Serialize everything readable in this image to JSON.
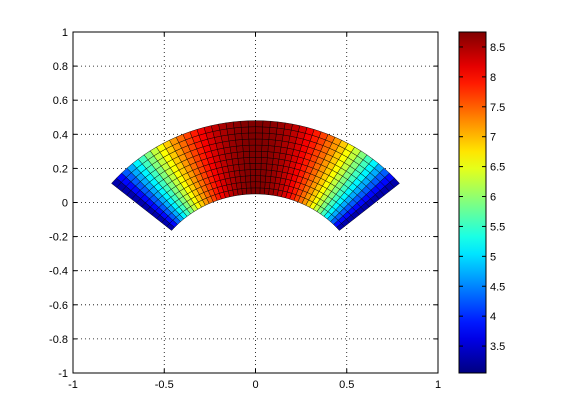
{
  "chart_data": {
    "type": "heatmap",
    "title": "",
    "xlabel": "",
    "ylabel": "",
    "xlim": [
      -1,
      1
    ],
    "ylim": [
      -1,
      1
    ],
    "grid": true,
    "grid_style": "dotted",
    "colormap": "jet",
    "xticks": [
      -1,
      -0.5,
      0,
      0.5,
      1
    ],
    "xtick_labels": [
      "-1",
      "-0.5",
      "0",
      "0.5",
      "1"
    ],
    "yticks": [
      1,
      0.8,
      0.6,
      0.4,
      0.2,
      0,
      -0.2,
      -0.4,
      -0.6,
      -0.8,
      -1
    ],
    "ytick_labels": [
      "1",
      "0.8",
      "0.6",
      "0.4",
      "0.2",
      "0",
      "-0.2",
      "-0.4",
      "-0.6",
      "-0.8",
      "-1"
    ],
    "surface": {
      "shape": "annular-sector mesh",
      "center": [
        0,
        -0.55
      ],
      "inner_radius": 0.6,
      "outer_radius": 1.03,
      "angle_range_deg": [
        40,
        140
      ],
      "radial_cells": 12,
      "angular_cells": 44,
      "value_range": [
        3.05,
        8.75
      ],
      "value_at_center_line": 8.75,
      "value_at_edges": 3.05
    },
    "colorbar": {
      "range": [
        3.05,
        8.75
      ],
      "ticks": [
        3.5,
        4,
        4.5,
        5,
        5.5,
        6,
        6.5,
        7,
        7.5,
        8,
        8.5
      ],
      "tick_labels": [
        "3.5",
        "4",
        "4.5",
        "5",
        "5.5",
        "6",
        "6.5",
        "7",
        "7.5",
        "8",
        "8.5"
      ]
    }
  }
}
